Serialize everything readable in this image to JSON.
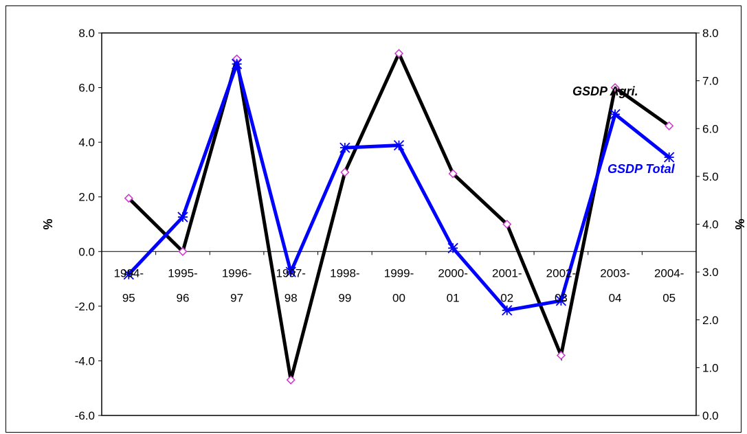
{
  "chart_data": {
    "type": "line",
    "categories": [
      [
        "1994-",
        "95"
      ],
      [
        "1995-",
        "96"
      ],
      [
        "1996-",
        "97"
      ],
      [
        "1997-",
        "98"
      ],
      [
        "1998-",
        "99"
      ],
      [
        "1999-",
        "00"
      ],
      [
        "2000-",
        "01"
      ],
      [
        "2001-",
        "02"
      ],
      [
        "2002-",
        "03"
      ],
      [
        "2003-",
        "04"
      ],
      [
        "2004-",
        "05"
      ]
    ],
    "ylabel": "%",
    "y2label": "%",
    "ylim": [
      -6.0,
      8.0
    ],
    "yticks": [
      "8.0",
      "6.0",
      "4.0",
      "2.0",
      "0.0",
      "-2.0",
      "-4.0",
      "-6.0"
    ],
    "y2lim": [
      0.0,
      8.0
    ],
    "y2ticks": [
      "8.0",
      "7.0",
      "6.0",
      "5.0",
      "4.0",
      "3.0",
      "2.0",
      "1.0",
      "0.0"
    ],
    "series": [
      {
        "name": "GSDP Agri.",
        "axis": "left",
        "color": "#000000",
        "marker": "diamond",
        "marker_color": "#CC33CC",
        "values": [
          1.95,
          0.0,
          7.05,
          -4.7,
          2.9,
          7.25,
          2.85,
          1.0,
          -3.8,
          6.0,
          4.6
        ]
      },
      {
        "name": "GSDP Total",
        "axis": "right",
        "color": "#0000FF",
        "marker": "asterisk",
        "marker_color": "#0000FF",
        "values": [
          2.95,
          4.15,
          7.35,
          3.0,
          5.6,
          5.65,
          3.5,
          2.2,
          2.4,
          6.3,
          5.4
        ]
      }
    ],
    "grid": false,
    "legend": "inline labels"
  }
}
